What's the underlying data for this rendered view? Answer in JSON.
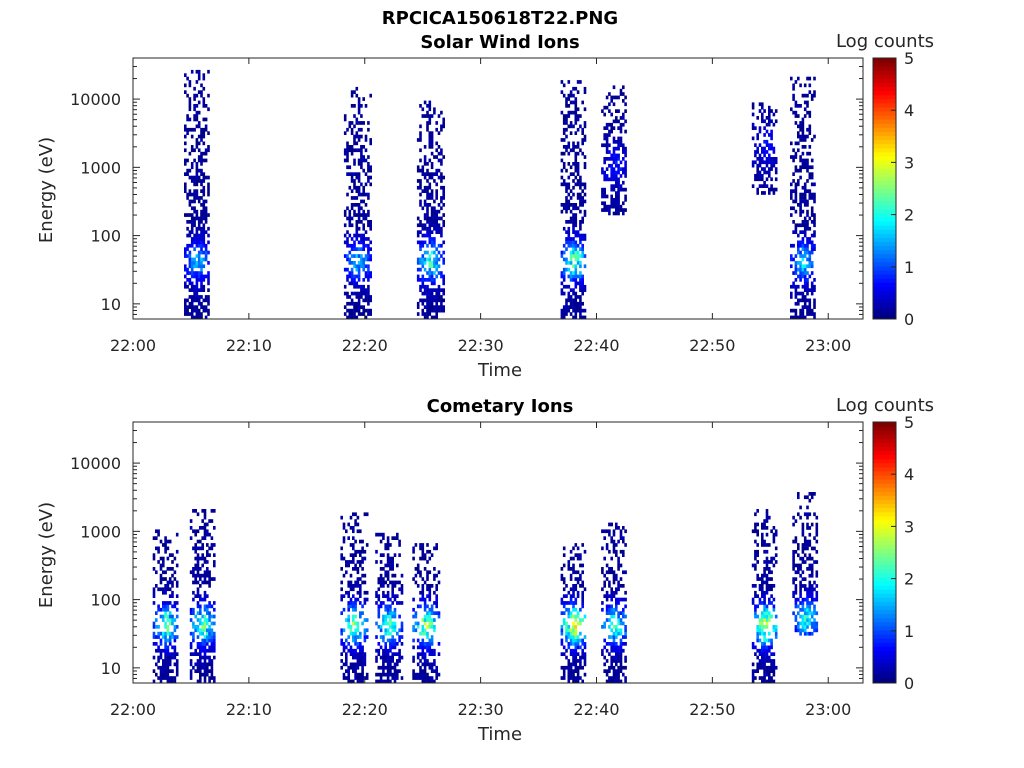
{
  "figure_title": "RPCICA150618T22.PNG",
  "colors": {
    "axis": "#262626",
    "background": "#ffffff",
    "colormap": "jet"
  },
  "chart_data": [
    {
      "type": "heatmap",
      "title": "Solar Wind Ions",
      "xlabel": "Time",
      "ylabel": "Energy (eV)",
      "y_scale": "log",
      "xlim": [
        "22:00",
        "23:03"
      ],
      "ylim": [
        6,
        40000
      ],
      "x_ticks": [
        "22:00",
        "22:10",
        "22:20",
        "22:30",
        "22:40",
        "22:50",
        "23:00"
      ],
      "y_ticks": [
        "10",
        "100",
        "1000",
        "10000"
      ],
      "colorbar": {
        "label": "Log counts",
        "range": [
          0,
          5
        ],
        "ticks": [
          "0",
          "1",
          "2",
          "3",
          "4",
          "5"
        ]
      },
      "bursts": [
        {
          "t": "22:05.5",
          "e_min": 6,
          "e_max": 24000,
          "core_e": 40,
          "peak_log": 1.8
        },
        {
          "t": "22:19.3",
          "e_min": 6,
          "e_max": 15000,
          "core_e": 40,
          "peak_log": 1.9
        },
        {
          "t": "22:25.6",
          "e_min": 6,
          "e_max": 10000,
          "core_e": 40,
          "peak_log": 2.5
        },
        {
          "t": "22:38.0",
          "e_min": 6,
          "e_max": 20000,
          "core_e": 40,
          "peak_log": 2.9
        },
        {
          "t": "22:41.5",
          "e_min": 200,
          "e_max": 15000,
          "core_e": 1000,
          "peak_log": 0.8
        },
        {
          "t": "22:54.5",
          "e_min": 400,
          "e_max": 8000,
          "core_e": 2000,
          "peak_log": 0.7
        },
        {
          "t": "22:57.8",
          "e_min": 6,
          "e_max": 20000,
          "core_e": 40,
          "peak_log": 2.0
        }
      ]
    },
    {
      "type": "heatmap",
      "title": "Cometary Ions",
      "xlabel": "Time",
      "ylabel": "Energy (eV)",
      "y_scale": "log",
      "xlim": [
        "22:00",
        "23:03"
      ],
      "ylim": [
        6,
        40000
      ],
      "x_ticks": [
        "22:00",
        "22:10",
        "22:20",
        "22:30",
        "22:40",
        "22:50",
        "23:00"
      ],
      "y_ticks": [
        "10",
        "100",
        "1000",
        "10000"
      ],
      "colorbar": {
        "label": "Log counts",
        "range": [
          0,
          5
        ],
        "ticks": [
          "0",
          "1",
          "2",
          "3",
          "4",
          "5"
        ]
      },
      "bursts": [
        {
          "t": "22:02.8",
          "e_min": 6,
          "e_max": 1200,
          "core_e": 40,
          "peak_log": 2.8
        },
        {
          "t": "22:06.0",
          "e_min": 6,
          "e_max": 2000,
          "core_e": 40,
          "peak_log": 2.8
        },
        {
          "t": "22:19.0",
          "e_min": 6,
          "e_max": 1800,
          "core_e": 40,
          "peak_log": 3.0
        },
        {
          "t": "22:22.0",
          "e_min": 6,
          "e_max": 900,
          "core_e": 40,
          "peak_log": 2.7
        },
        {
          "t": "22:25.2",
          "e_min": 6,
          "e_max": 600,
          "core_e": 40,
          "peak_log": 3.3
        },
        {
          "t": "22:38.0",
          "e_min": 6,
          "e_max": 600,
          "core_e": 40,
          "peak_log": 3.8
        },
        {
          "t": "22:41.5",
          "e_min": 6,
          "e_max": 1300,
          "core_e": 40,
          "peak_log": 2.6
        },
        {
          "t": "22:54.5",
          "e_min": 6,
          "e_max": 2000,
          "core_e": 40,
          "peak_log": 3.6
        },
        {
          "t": "22:58.0",
          "e_min": 30,
          "e_max": 3500,
          "core_e": 50,
          "peak_log": 2.4
        }
      ]
    }
  ]
}
